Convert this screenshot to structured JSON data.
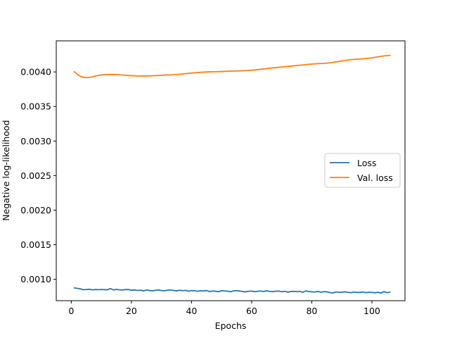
{
  "chart_data": {
    "type": "line",
    "title": "",
    "xlabel": "Epochs",
    "ylabel": "Negative log-likelihood",
    "xlim": [
      -5,
      111
    ],
    "ylim": [
      0.00069,
      0.00445
    ],
    "xticks": [
      0,
      20,
      40,
      60,
      80,
      100
    ],
    "yticks": [
      0.001,
      0.0015,
      0.002,
      0.0025,
      0.003,
      0.0035,
      0.004
    ],
    "ytick_labels": [
      "0.0010",
      "0.0015",
      "0.0020",
      "0.0025",
      "0.0030",
      "0.0035",
      "0.0040"
    ],
    "grid": false,
    "legend_position": "center-right",
    "series": [
      {
        "name": "Loss",
        "color": "#1f77b4",
        "x": [
          1,
          2,
          3,
          4,
          5,
          6,
          7,
          8,
          9,
          10,
          11,
          12,
          13,
          14,
          15,
          16,
          17,
          18,
          19,
          20,
          21,
          22,
          23,
          24,
          25,
          26,
          27,
          28,
          29,
          30,
          31,
          32,
          33,
          34,
          35,
          36,
          37,
          38,
          39,
          40,
          41,
          42,
          43,
          44,
          45,
          46,
          47,
          48,
          49,
          50,
          51,
          52,
          53,
          54,
          55,
          56,
          57,
          58,
          59,
          60,
          61,
          62,
          63,
          64,
          65,
          66,
          67,
          68,
          69,
          70,
          71,
          72,
          73,
          74,
          75,
          76,
          77,
          78,
          79,
          80,
          81,
          82,
          83,
          84,
          85,
          86,
          87,
          88,
          89,
          90,
          91,
          92,
          93,
          94,
          95,
          96,
          97,
          98,
          99,
          100,
          101,
          102,
          103,
          104,
          105,
          106
        ],
        "y": [
          0.000875,
          0.000868,
          0.000862,
          0.000848,
          0.000852,
          0.000855,
          0.000847,
          0.000851,
          0.000849,
          0.000852,
          0.00085,
          0.000848,
          0.000865,
          0.000846,
          0.000853,
          0.000848,
          0.000844,
          0.00085,
          0.000852,
          0.000841,
          0.000846,
          0.000838,
          0.000843,
          0.00083,
          0.000845,
          0.000838,
          0.000832,
          0.00084,
          0.000846,
          0.000836,
          0.000833,
          0.000841,
          0.000847,
          0.000838,
          0.000832,
          0.00084,
          0.000835,
          0.000839,
          0.000828,
          0.000836,
          0.000834,
          0.000826,
          0.000834,
          0.00083,
          0.000837,
          0.000822,
          0.00083,
          0.000827,
          0.00082,
          0.000835,
          0.00083,
          0.000828,
          0.00082,
          0.000832,
          0.000836,
          0.00083,
          0.000822,
          0.000818,
          0.000826,
          0.000829,
          0.00082,
          0.000826,
          0.00083,
          0.000822,
          0.000833,
          0.000824,
          0.000822,
          0.000826,
          0.00083,
          0.000818,
          0.000826,
          0.000814,
          0.000822,
          0.000826,
          0.00082,
          0.000825,
          0.000812,
          0.000831,
          0.000822,
          0.000819,
          0.000815,
          0.000824,
          0.000812,
          0.00082,
          0.000818,
          0.000808,
          0.000801,
          0.000816,
          0.000812,
          0.000813,
          0.000818,
          0.000811,
          0.000805,
          0.000815,
          0.000811,
          0.000809,
          0.000816,
          0.000806,
          0.000812,
          0.00081,
          0.000804,
          0.000812,
          0.0008,
          0.000822,
          0.000806,
          0.000812
        ]
      },
      {
        "name": "Val. loss",
        "color": "#ff7f0e",
        "x": [
          1,
          2,
          3,
          4,
          5,
          6,
          7,
          8,
          10,
          12,
          14,
          16,
          18,
          20,
          22,
          24,
          26,
          28,
          30,
          32,
          34,
          36,
          38,
          40,
          42,
          44,
          46,
          48,
          50,
          52,
          54,
          56,
          58,
          60,
          62,
          64,
          66,
          68,
          70,
          72,
          74,
          76,
          78,
          80,
          82,
          84,
          86,
          88,
          90,
          92,
          94,
          96,
          98,
          100,
          102,
          104,
          106
        ],
        "y": [
          0.004005,
          0.003965,
          0.003937,
          0.003923,
          0.003918,
          0.00392,
          0.003928,
          0.00394,
          0.003957,
          0.003963,
          0.003963,
          0.003958,
          0.003952,
          0.003946,
          0.003942,
          0.003941,
          0.003943,
          0.003947,
          0.003952,
          0.003956,
          0.00396,
          0.003966,
          0.003975,
          0.003984,
          0.003991,
          0.003997,
          0.004001,
          0.004003,
          0.004006,
          0.00401,
          0.004013,
          0.004016,
          0.004019,
          0.004025,
          0.004033,
          0.004043,
          0.004054,
          0.004063,
          0.004072,
          0.00408,
          0.004088,
          0.004097,
          0.004106,
          0.004114,
          0.00412,
          0.004124,
          0.004132,
          0.004145,
          0.004158,
          0.004172,
          0.004181,
          0.004188,
          0.004194,
          0.004204,
          0.004218,
          0.004232,
          0.00424
        ]
      }
    ]
  }
}
